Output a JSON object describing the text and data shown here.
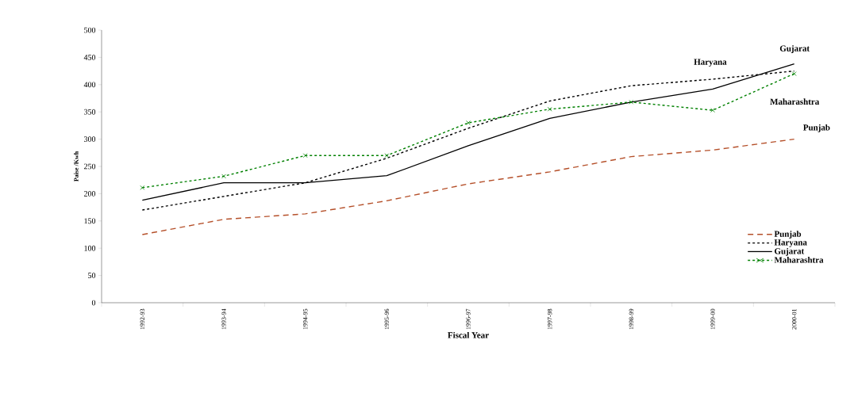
{
  "chart_data": {
    "type": "line",
    "xlabel": "Fiscal Year",
    "ylabel": "Paise /Kwh",
    "categories": [
      "1992-93",
      "1993-94",
      "1994-95",
      "1995-96",
      "1996-97",
      "1997-98",
      "1998-99",
      "1999-00",
      "2000-01"
    ],
    "series": [
      {
        "name": "Punjab",
        "color": "#b5502a",
        "line_style": "dashed",
        "marker": "none",
        "values": [
          125,
          153,
          163,
          187,
          218,
          240,
          268,
          280,
          300
        ]
      },
      {
        "name": "Haryana",
        "color": "#000000",
        "line_style": "dotted",
        "marker": "none",
        "values": [
          170,
          195,
          220,
          265,
          320,
          370,
          398,
          410,
          425
        ]
      },
      {
        "name": "Gujarat",
        "color": "#000000",
        "line_style": "solid",
        "marker": "none",
        "values": [
          188,
          220,
          220,
          233,
          288,
          338,
          368,
          392,
          438
        ]
      },
      {
        "name": "Maharashtra",
        "color": "#008000",
        "line_style": "dotted",
        "marker": "cross",
        "values": [
          211,
          232,
          270,
          270,
          330,
          355,
          368,
          353,
          420
        ]
      }
    ],
    "ylim": [
      0,
      500
    ],
    "yticks": [
      0,
      50,
      100,
      150,
      200,
      250,
      300,
      350,
      400,
      450,
      500
    ],
    "legend": "right",
    "grid": false,
    "annotations": [
      "Haryana",
      "Gujarat",
      "Maharashtra",
      "Punjab"
    ]
  }
}
